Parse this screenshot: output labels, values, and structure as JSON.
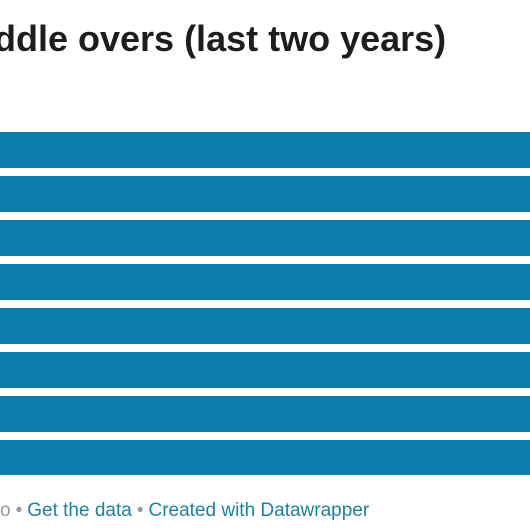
{
  "header": {
    "title": "ddle overs (last two years)"
  },
  "chart_data": {
    "type": "bar",
    "orientation": "horizontal",
    "bar_count": 8,
    "color": "#0e7fac",
    "title": "ddle overs (last two years)"
  },
  "footer": {
    "lead_glyph": "o",
    "separator": "•",
    "get_data_label": "Get the data",
    "created_with_label": "Created with Datawrapper",
    "link_color": "#1d81a2"
  }
}
